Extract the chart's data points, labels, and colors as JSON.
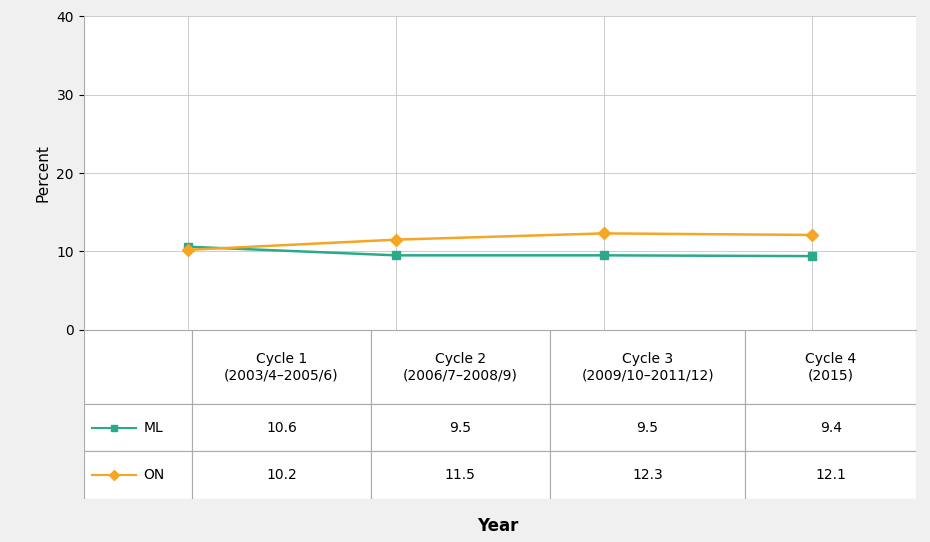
{
  "x_positions": [
    0,
    1,
    2,
    3
  ],
  "series": [
    {
      "label": "ML",
      "values": [
        10.6,
        9.5,
        9.5,
        9.4
      ],
      "color": "#2aaa8a",
      "marker": "s",
      "linewidth": 1.8,
      "markersize": 6
    },
    {
      "label": "ON",
      "values": [
        10.2,
        11.5,
        12.3,
        12.1
      ],
      "color": "#f5a623",
      "marker": "D",
      "linewidth": 1.8,
      "markersize": 6
    }
  ],
  "ylabel": "Percent",
  "xlabel": "Year",
  "ylim": [
    0,
    40
  ],
  "yticks": [
    0,
    10,
    20,
    30,
    40
  ],
  "col_headers": [
    "Cycle 1\n(2003/4–2005/6)",
    "Cycle 2\n(2006/7–2008/9)",
    "Cycle 3\n(2009/10–2011/12)",
    "Cycle 4\n(2015)"
  ],
  "table_rows": [
    {
      "label": "ML",
      "values": [
        "10.6",
        "9.5",
        "9.5",
        "9.4"
      ],
      "color": "#2aaa8a",
      "marker": "s"
    },
    {
      "label": "ON",
      "values": [
        "10.2",
        "11.5",
        "12.3",
        "12.1"
      ],
      "color": "#f5a623",
      "marker": "D"
    }
  ],
  "bg_color": "#f0f0f0",
  "plot_bg_color": "#ffffff",
  "grid_color": "#cccccc",
  "axis_label_fontsize": 11,
  "tick_fontsize": 10,
  "table_fontsize": 10
}
